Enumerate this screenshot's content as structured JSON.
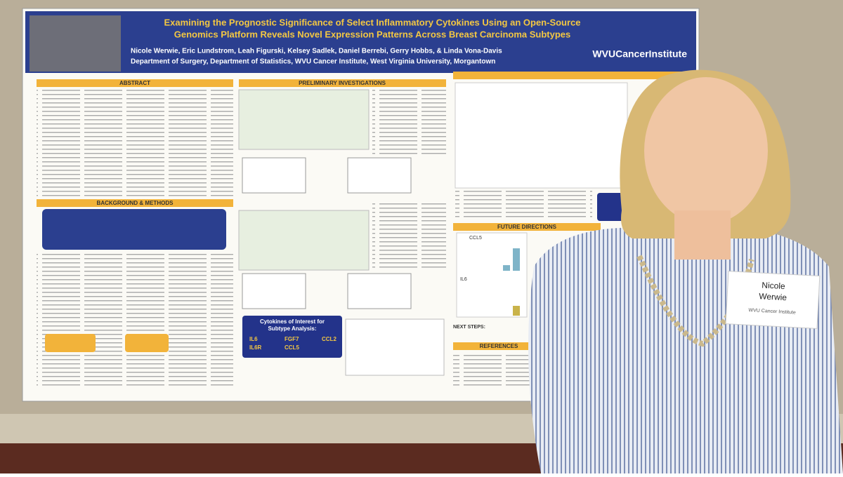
{
  "poster": {
    "title_lines": [
      "Examining the Prognostic Significance of Select Inflammatory Cytokines Using an Open-Source",
      "Genomics Platform Reveals Novel Expression Patterns Across Breast Carcinoma Subtypes"
    ],
    "authors": "Nicole Werwie, Eric Lundstrom, Leah Figurski, Kelsey Sadlek, Daniel Berrebi, Gerry Hobbs, & Linda Vona-Davis",
    "affiliation": "Department of Surgery, Department of Statistics, WVU Cancer Institute, West Virginia University, Morgantown",
    "logo": "WVUCancerInstitute",
    "sections": {
      "abstract": "ABSTRACT",
      "preliminary": "PRELIMINARY INVESTIGATIONS",
      "background": "BACKGROUND & METHODS",
      "future": "FUTURE DIRECTIONS",
      "references": "REFERENCES",
      "next_steps": "NEXT STEPS:"
    },
    "cytokine_box": {
      "title_lines": [
        "Cytokines of Interest for",
        "Subtype Analysis:"
      ],
      "items": [
        "IL6",
        "FGF7",
        "CCL2",
        "IL6R",
        "CCL5"
      ]
    },
    "chart_labels": [
      "CCL5",
      "IL6"
    ]
  },
  "name_tag": {
    "name_lines": [
      "Nicole",
      "Werwie"
    ],
    "org": "WVU Cancer Institute"
  }
}
